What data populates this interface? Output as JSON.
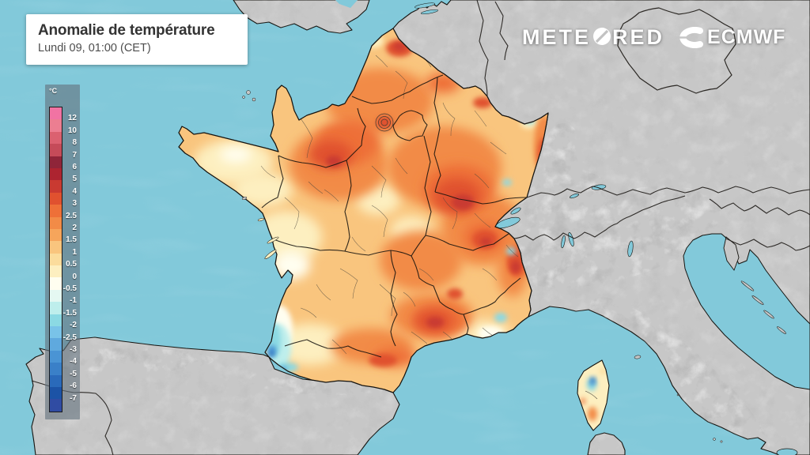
{
  "title_card": {
    "title": "Anomalie de température",
    "subtitle": "Lundi 09, 01:00 (CET)"
  },
  "branding": {
    "meteored_prefix": "METE",
    "meteored_suffix": "RED",
    "ecmwf_label": "ECMWF",
    "logo_color": "#ffffff"
  },
  "legend": {
    "unit": "°C",
    "tick_labels": [
      "12",
      "10",
      "8",
      "7",
      "6",
      "5",
      "4",
      "3",
      "2.5",
      "2",
      "1.5",
      "1",
      "0.5",
      "0",
      "-0.5",
      "-1",
      "-1.5",
      "-2",
      "-2.5",
      "-3",
      "-4",
      "-5",
      "-6",
      "-7"
    ],
    "cell_colors": [
      "#F173A3",
      "#EC7E91",
      "#DB6170",
      "#C54B59",
      "#8F2539",
      "#AD2430",
      "#C93A31",
      "#E0512F",
      "#EE7038",
      "#F28B47",
      "#F6A55B",
      "#F9C57E",
      "#FBDC9C",
      "#FDEFC0",
      "#FFFEF0",
      "#E5F8F2",
      "#BEEEEC",
      "#8BD9E3",
      "#79C3E8",
      "#5FA9DE",
      "#4A94D4",
      "#3A80C8",
      "#2A6ABA",
      "#1C53A6",
      "#304CA3"
    ],
    "panel_color": "rgba(100,114,126,0.62)",
    "label_color": "#ffffff"
  },
  "map": {
    "sea_color": "#82C9DA",
    "land_color": "#C7C7C7",
    "coastline_color": "#15130F",
    "department_line_color": "#4a453c",
    "france_base_color_index": 11
  }
}
